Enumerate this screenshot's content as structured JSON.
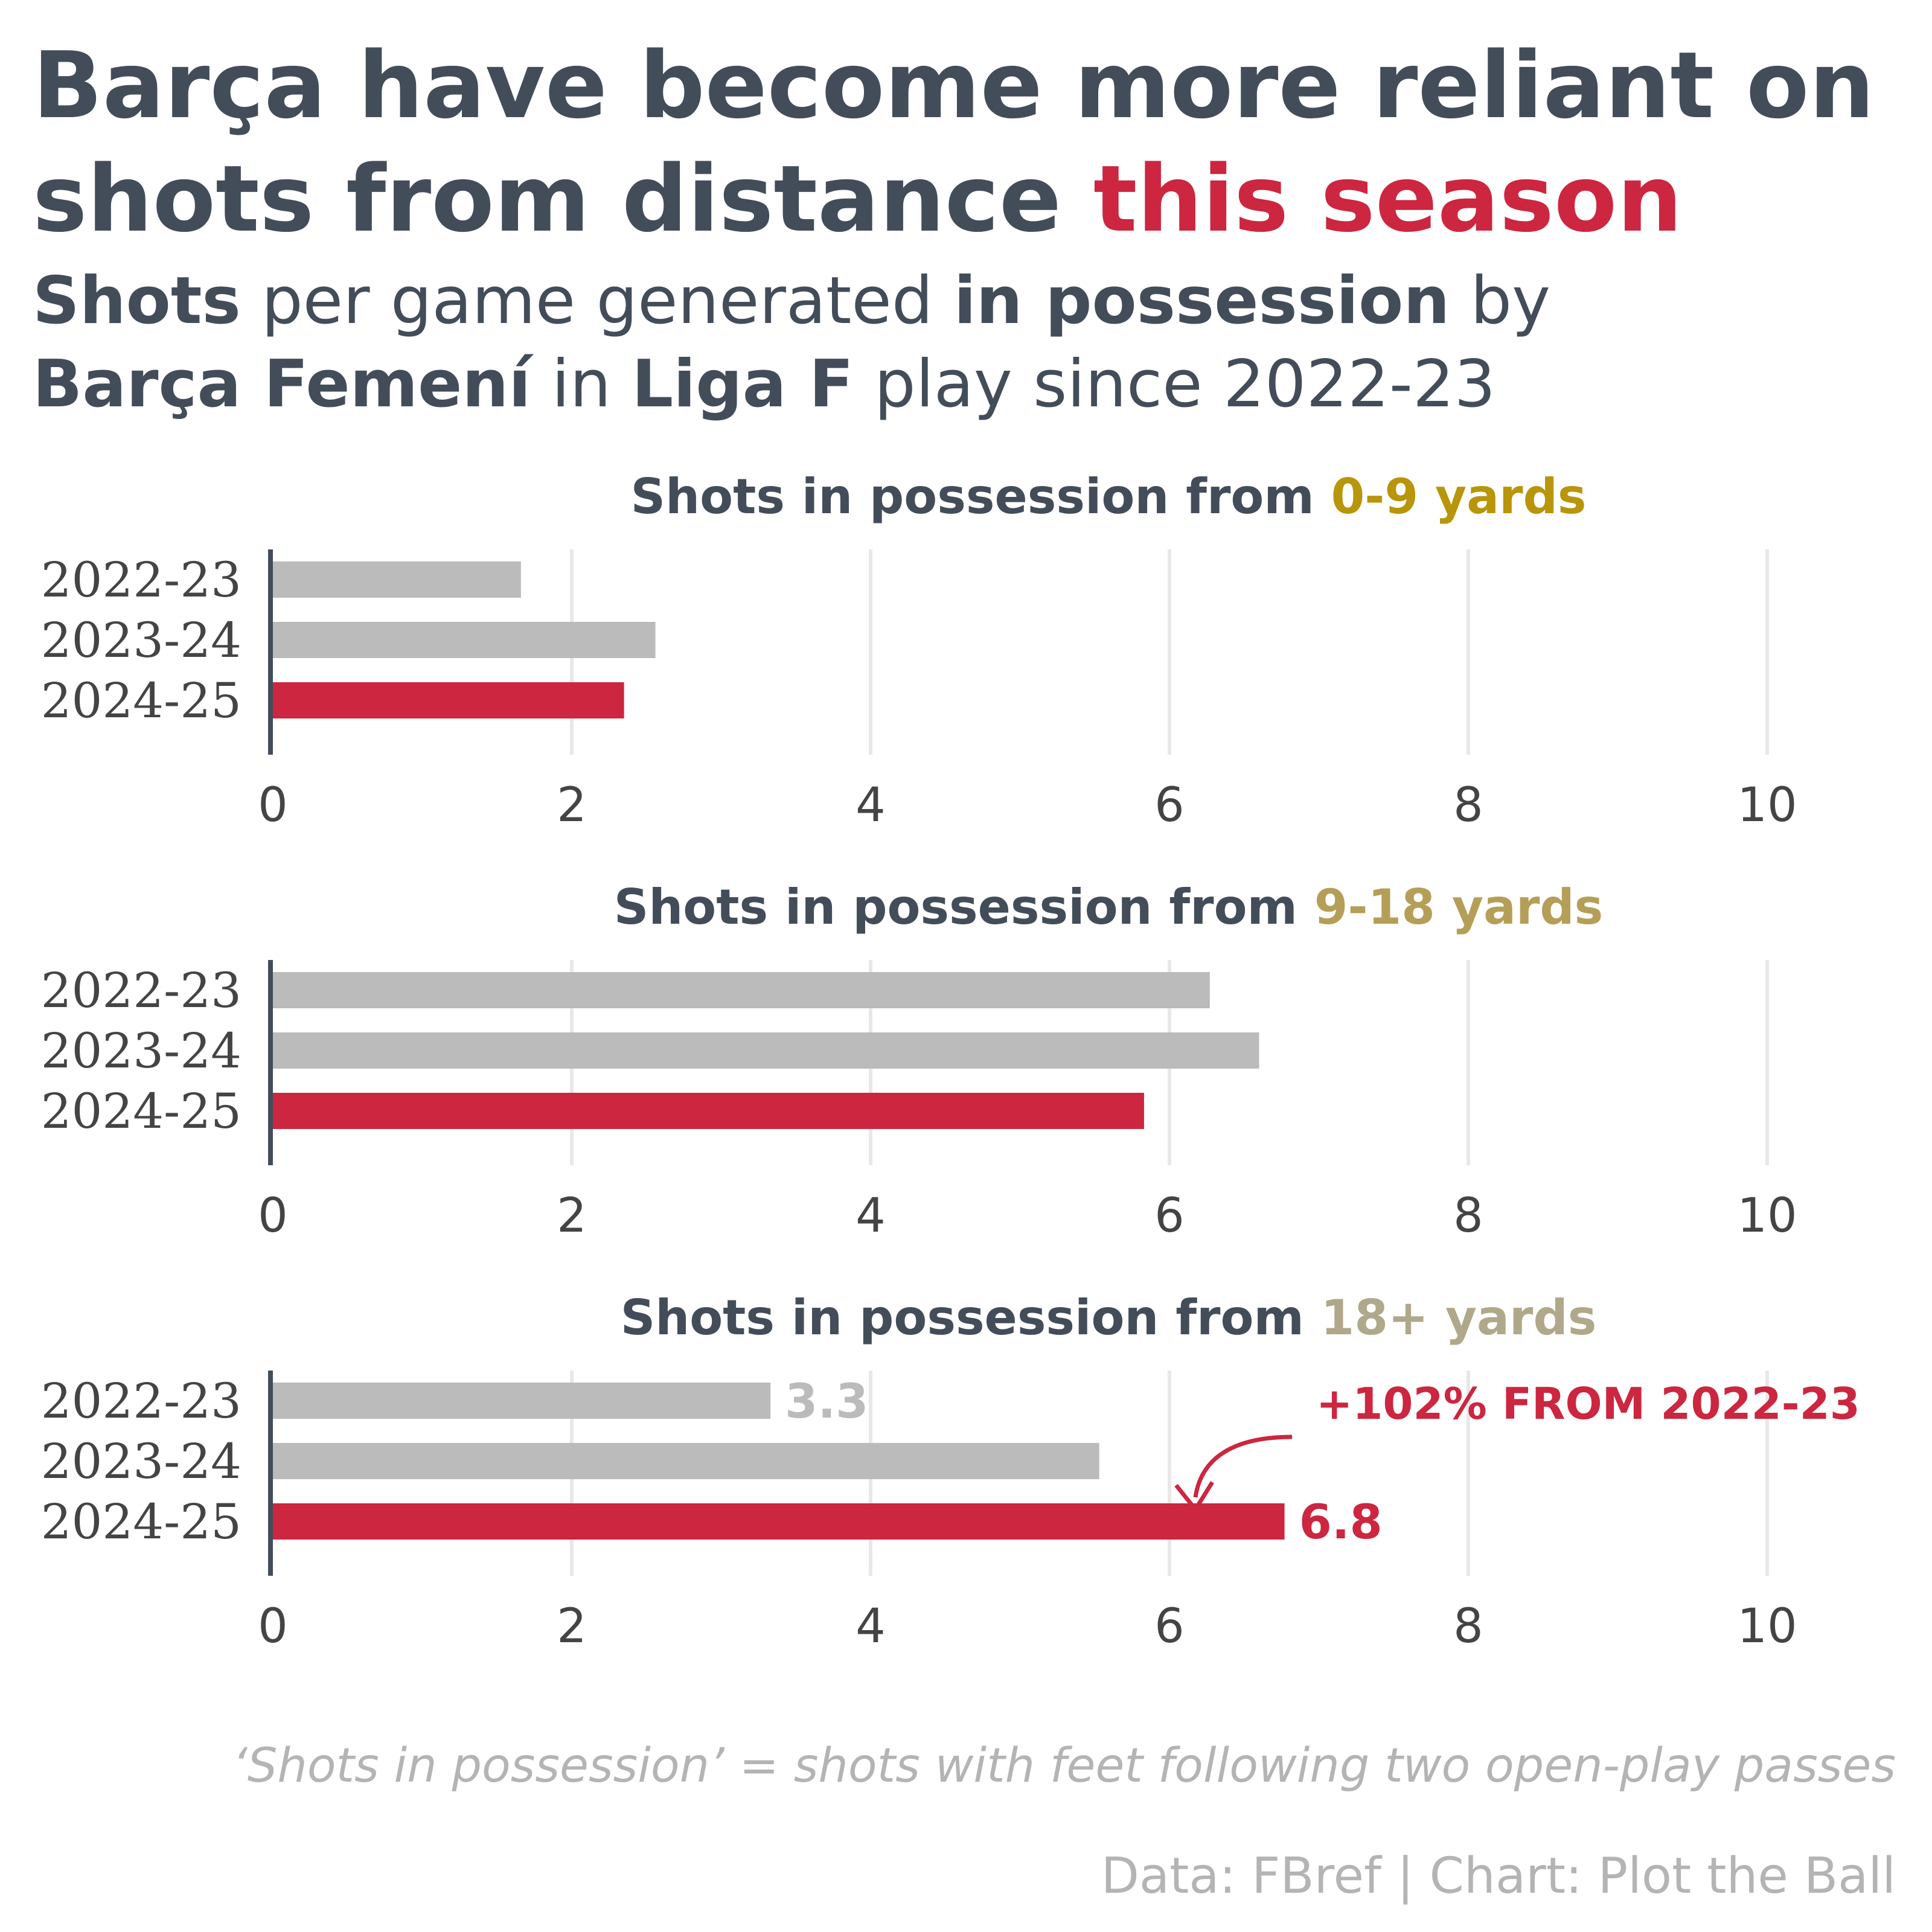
{
  "title": {
    "part1": "Barça have become more reliant on",
    "part2": "shots from distance",
    "highlight": "this season"
  },
  "subtitle": {
    "t1": "Shots",
    "t2": " per game generated ",
    "t3": "in possession",
    "t4": " by",
    "t5": "Barça Femení",
    "t6": " in ",
    "t7": "Liga F",
    "t8": " play since 2022-23"
  },
  "colors": {
    "text": "#434d5a",
    "highlight": "#cc2640",
    "bar_past": "#bbbbbb",
    "bar_current": "#cc2640",
    "grid": "#e8e8e8",
    "tick_text": "#444444",
    "range_0_9": "#b8950a",
    "range_9_18": "#b59f58",
    "range_18": "#b0a88a"
  },
  "chart_data": [
    {
      "type": "bar",
      "orientation": "horizontal",
      "title_prefix": "Shots in possession from ",
      "title_range": "0-9 yards",
      "range_color": "#b8950a",
      "categories": [
        "2022-23",
        "2023-24",
        "2024-25"
      ],
      "values": [
        1.66,
        2.56,
        2.35
      ],
      "bar_colors": [
        "#bbbbbb",
        "#bbbbbb",
        "#cc2640"
      ],
      "xlim": [
        0,
        10
      ],
      "ticks": [
        "0",
        "2",
        "4",
        "6",
        "8",
        "10"
      ],
      "grid": true
    },
    {
      "type": "bar",
      "orientation": "horizontal",
      "title_prefix": "Shots in possession from ",
      "title_range": "9-18 yards",
      "range_color": "#b59f58",
      "categories": [
        "2022-23",
        "2023-24",
        "2024-25"
      ],
      "values": [
        6.27,
        6.6,
        5.83
      ],
      "bar_colors": [
        "#bbbbbb",
        "#bbbbbb",
        "#cc2640"
      ],
      "xlim": [
        0,
        10
      ],
      "ticks": [
        "0",
        "2",
        "4",
        "6",
        "8",
        "10"
      ],
      "grid": true
    },
    {
      "type": "bar",
      "orientation": "horizontal",
      "title_prefix": "Shots in possession from ",
      "title_range": "18+ yards",
      "range_color": "#b0a88a",
      "categories": [
        "2022-23",
        "2023-24",
        "2024-25"
      ],
      "values": [
        3.33,
        5.53,
        6.77
      ],
      "bar_colors": [
        "#bbbbbb",
        "#bbbbbb",
        "#cc2640"
      ],
      "data_labels": [
        "3.3",
        "",
        "6.8"
      ],
      "xlim": [
        0,
        10
      ],
      "ticks": [
        "0",
        "2",
        "4",
        "6",
        "8",
        "10"
      ],
      "grid": true,
      "annotation": "+102% FROM 2022-23"
    }
  ],
  "footer": {
    "note": "‘Shots in possession’ = shots with feet following two open-play passes",
    "source": "Data: FBref | Chart: Plot the Ball"
  }
}
